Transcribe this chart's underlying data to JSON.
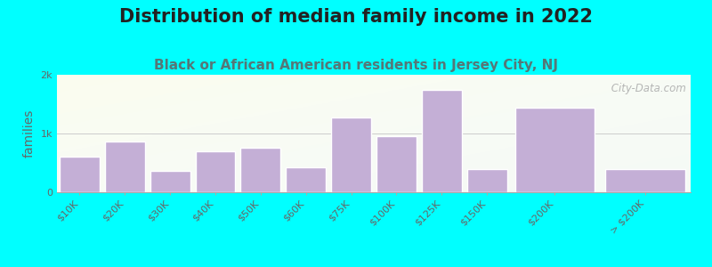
{
  "title": "Distribution of median family income in 2022",
  "subtitle": "Black or African American residents in Jersey City, NJ",
  "ylabel": "families",
  "background_color": "#00FFFF",
  "bar_color": "#c4afd6",
  "bar_edge_color": "#d0bfe0",
  "categories": [
    "$10K",
    "$20K",
    "$30K",
    "$40K",
    "$50K",
    "$60K",
    "$75K",
    "$100K",
    "$125K",
    "$150K",
    "$200K",
    "> $200K"
  ],
  "values": [
    600,
    870,
    370,
    700,
    760,
    430,
    1280,
    960,
    1750,
    400,
    1440,
    400
  ],
  "bar_widths": [
    1,
    1,
    1,
    1,
    1,
    1,
    1,
    1,
    1,
    1,
    2,
    2
  ],
  "ylim": [
    0,
    2000
  ],
  "yticks": [
    0,
    1000,
    2000
  ],
  "ytick_labels": [
    "0",
    "1k",
    "2k"
  ],
  "watermark": " City-Data.com",
  "title_fontsize": 15,
  "subtitle_fontsize": 11,
  "tick_fontsize": 8,
  "ylabel_fontsize": 10,
  "subtitle_color": "#557777",
  "title_color": "#222222",
  "tick_color": "#666666"
}
